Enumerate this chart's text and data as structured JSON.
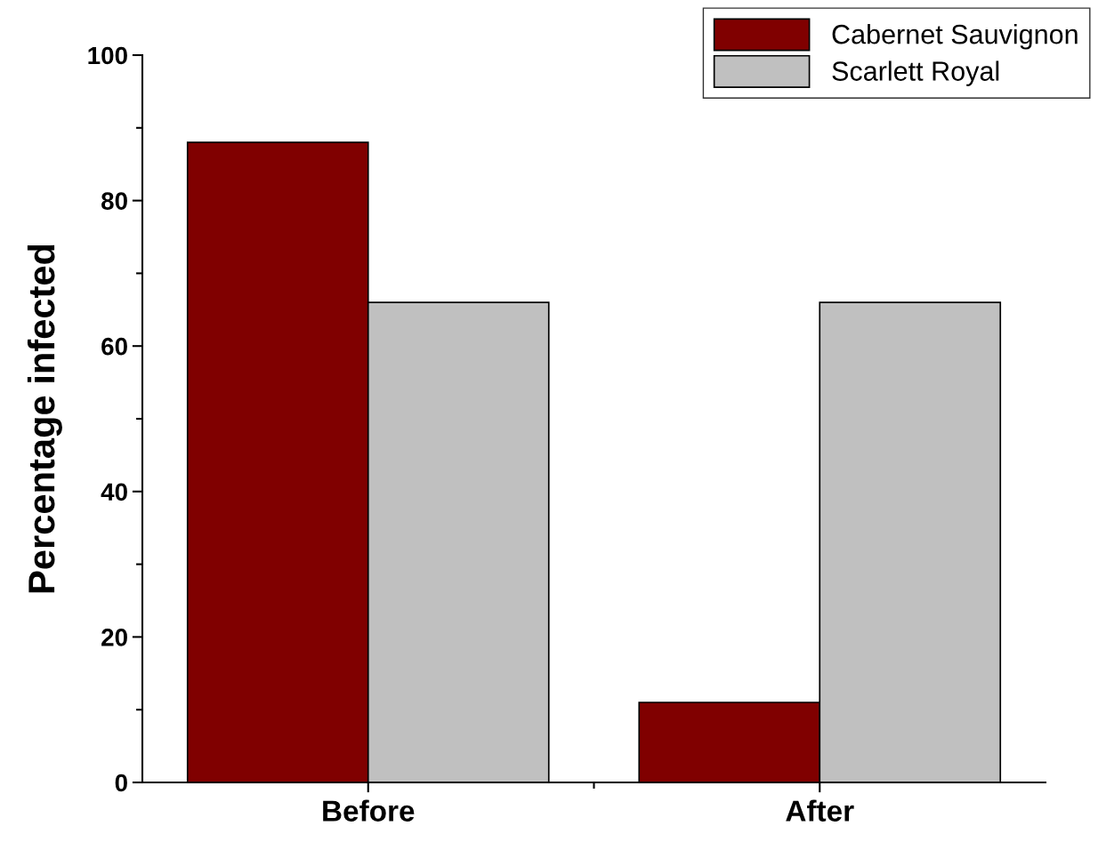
{
  "chart_data": {
    "type": "bar",
    "ylabel": "Percentage infected",
    "categories": [
      "Before",
      "After"
    ],
    "series": [
      {
        "name": "Cabernet Sauvignon",
        "color": "#800000",
        "values": [
          88,
          11
        ]
      },
      {
        "name": "Scarlett Royal",
        "color": "#c0c0c0",
        "values": [
          66,
          66
        ]
      }
    ],
    "ylim": [
      0,
      100
    ],
    "yticks": [
      0,
      20,
      40,
      60,
      80,
      100
    ],
    "grid": false,
    "legend": "top right"
  }
}
